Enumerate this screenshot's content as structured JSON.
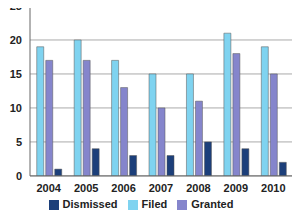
{
  "chart_data": {
    "type": "bar",
    "categories": [
      "2004",
      "2005",
      "2006",
      "2007",
      "2008",
      "2009",
      "2010"
    ],
    "series": [
      {
        "name": "Filed",
        "color": "#7fd3f0",
        "values": [
          19,
          20,
          17,
          15,
          15,
          21,
          19
        ]
      },
      {
        "name": "Granted",
        "color": "#8585cc",
        "values": [
          17,
          17,
          13,
          10,
          11,
          18,
          15
        ]
      },
      {
        "name": "Dismissed",
        "color": "#1c3f7a",
        "values": [
          1,
          4,
          3,
          3,
          5,
          4,
          2
        ]
      }
    ],
    "ylim": [
      0,
      25
    ],
    "yticks": [
      0,
      5,
      10,
      15,
      20,
      25
    ],
    "grid": true,
    "legend": "bottom"
  }
}
